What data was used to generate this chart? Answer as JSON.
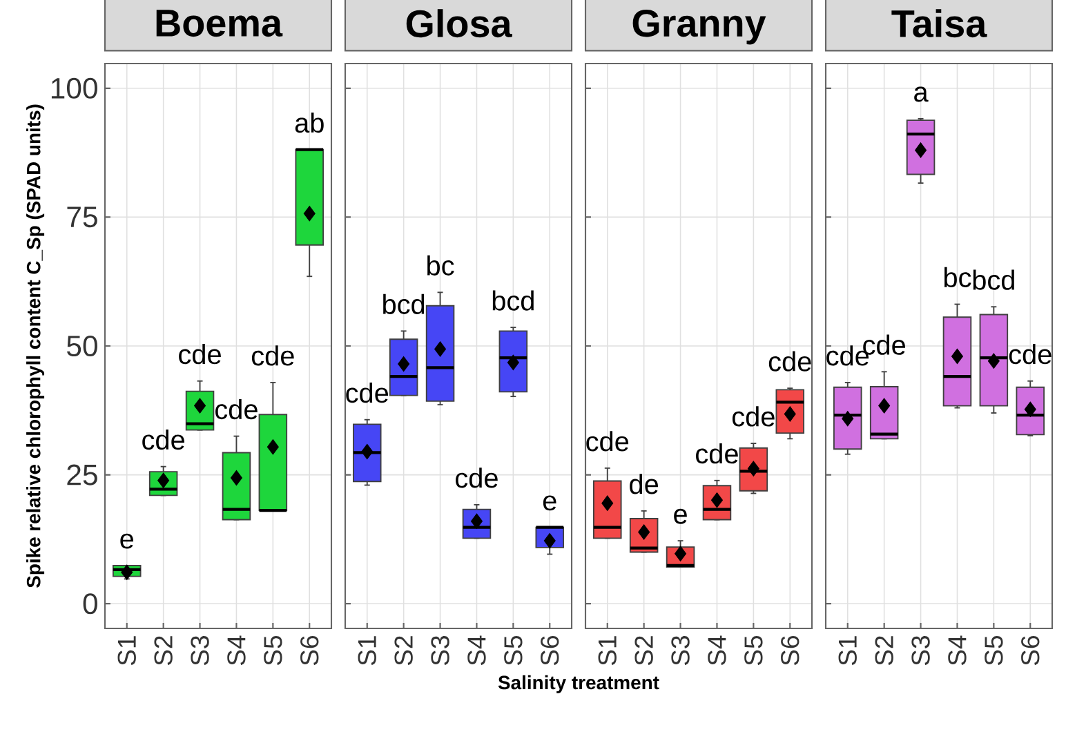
{
  "chart_data": [
    {
      "type": "box",
      "title": "Boema",
      "ylabel": "Spike relative chlorophyll content C_Sp (SPAD units)",
      "categories": [
        "S1",
        "S2",
        "S3",
        "S4",
        "S5",
        "S6"
      ],
      "ylim": [
        -4.8,
        104.8
      ],
      "yticks": [
        0,
        25,
        50,
        75,
        100
      ],
      "grid": true,
      "series": [
        {
          "color": "#1ed63c",
          "boxes": [
            {
              "low": 4.8,
              "q1": 5.3,
              "median": 6.6,
              "q3": 7.4,
              "high": 7.4,
              "mean": 6.1
            },
            {
              "low": 21.0,
              "q1": 21.0,
              "median": 22.2,
              "q3": 25.6,
              "high": 26.6,
              "mean": 23.9
            },
            {
              "low": 33.7,
              "q1": 33.7,
              "median": 34.9,
              "q3": 41.2,
              "high": 43.2,
              "mean": 38.4
            },
            {
              "low": 16.3,
              "q1": 16.3,
              "median": 18.3,
              "q3": 29.3,
              "high": 32.5,
              "mean": 24.4
            },
            {
              "low": 18.1,
              "q1": 18.1,
              "median": 18.1,
              "q3": 36.7,
              "high": 42.9,
              "mean": 30.4
            },
            {
              "low": 63.5,
              "q1": 69.6,
              "median": 88.1,
              "q3": 88.1,
              "high": 88.1,
              "mean": 75.7
            }
          ]
        }
      ],
      "annotations": [
        "e",
        "cde",
        "cde",
        "cde",
        "cde",
        "ab"
      ]
    },
    {
      "type": "box",
      "title": "Glosa",
      "xlabel": "Salinity treatment",
      "categories": [
        "S1",
        "S2",
        "S3",
        "S4",
        "S5",
        "S6"
      ],
      "ylim": [
        -4.8,
        104.8
      ],
      "yticks": [
        0,
        25,
        50,
        75,
        100
      ],
      "grid": true,
      "tick_labels": "x",
      "series": [
        {
          "color": "#4646f5",
          "boxes": [
            {
              "low": 23.0,
              "q1": 23.7,
              "median": 29.3,
              "q3": 34.8,
              "high": 35.7,
              "mean": 29.5
            },
            {
              "low": 40.4,
              "q1": 40.4,
              "median": 44.1,
              "q3": 51.3,
              "high": 52.9,
              "mean": 46.5
            },
            {
              "low": 38.6,
              "q1": 39.3,
              "median": 45.8,
              "q3": 57.8,
              "high": 60.4,
              "mean": 49.4
            },
            {
              "low": 12.7,
              "q1": 12.7,
              "median": 14.8,
              "q3": 18.3,
              "high": 19.2,
              "mean": 16.0
            },
            {
              "low": 40.2,
              "q1": 41.1,
              "median": 47.7,
              "q3": 52.9,
              "high": 53.6,
              "mean": 46.8
            },
            {
              "low": 9.6,
              "q1": 10.9,
              "median": 14.8,
              "q3": 14.8,
              "high": 14.8,
              "mean": 12.2
            }
          ]
        }
      ],
      "annotations": [
        "cde",
        "bcd",
        "bc",
        "cde",
        "bcd",
        "e"
      ]
    },
    {
      "type": "box",
      "title": "Granny",
      "categories": [
        "S1",
        "S2",
        "S3",
        "S4",
        "S5",
        "S6"
      ],
      "ylim": [
        -4.8,
        104.8
      ],
      "yticks": [
        0,
        25,
        50,
        75,
        100
      ],
      "grid": true,
      "tick_labels": "x",
      "series": [
        {
          "color": "#f24848",
          "boxes": [
            {
              "low": 12.7,
              "q1": 12.7,
              "median": 14.8,
              "q3": 23.8,
              "high": 26.3,
              "mean": 19.5
            },
            {
              "low": 10.0,
              "q1": 10.0,
              "median": 10.8,
              "q3": 16.5,
              "high": 18.0,
              "mean": 13.9
            },
            {
              "low": 7.1,
              "q1": 7.1,
              "median": 7.4,
              "q3": 11.0,
              "high": 12.2,
              "mean": 9.7
            },
            {
              "low": 16.3,
              "q1": 16.3,
              "median": 18.3,
              "q3": 22.9,
              "high": 23.9,
              "mean": 20.1
            },
            {
              "low": 21.4,
              "q1": 21.9,
              "median": 25.7,
              "q3": 30.2,
              "high": 31.1,
              "mean": 26.2
            },
            {
              "low": 32.0,
              "q1": 33.1,
              "median": 39.1,
              "q3": 41.5,
              "high": 41.8,
              "mean": 36.8
            }
          ]
        }
      ],
      "annotations": [
        "cde",
        "de",
        "e",
        "cde",
        "cde",
        "cde"
      ]
    },
    {
      "type": "box",
      "title": "Taisa",
      "categories": [
        "S1",
        "S2",
        "S3",
        "S4",
        "S5",
        "S6"
      ],
      "ylim": [
        -4.8,
        104.8
      ],
      "yticks": [
        0,
        25,
        50,
        75,
        100
      ],
      "grid": true,
      "tick_labels": "x",
      "series": [
        {
          "color": "#d070e0",
          "boxes": [
            {
              "low": 29.0,
              "q1": 30.0,
              "median": 36.6,
              "q3": 42.0,
              "high": 42.9,
              "mean": 35.9
            },
            {
              "low": 32.0,
              "q1": 32.0,
              "median": 32.9,
              "q3": 42.1,
              "high": 45.0,
              "mean": 38.4
            },
            {
              "low": 81.6,
              "q1": 83.3,
              "median": 91.1,
              "q3": 93.8,
              "high": 94.1,
              "mean": 88.0
            },
            {
              "low": 38.0,
              "q1": 38.4,
              "median": 44.1,
              "q3": 55.6,
              "high": 58.1,
              "mean": 48.0
            },
            {
              "low": 37.0,
              "q1": 38.4,
              "median": 47.7,
              "q3": 56.1,
              "high": 57.6,
              "mean": 47.1
            },
            {
              "low": 32.6,
              "q1": 32.8,
              "median": 36.6,
              "q3": 42.0,
              "high": 43.2,
              "mean": 37.7
            }
          ]
        }
      ],
      "annotations": [
        "cde",
        "cde",
        "a",
        "bc",
        "bcd",
        "cde"
      ]
    }
  ]
}
